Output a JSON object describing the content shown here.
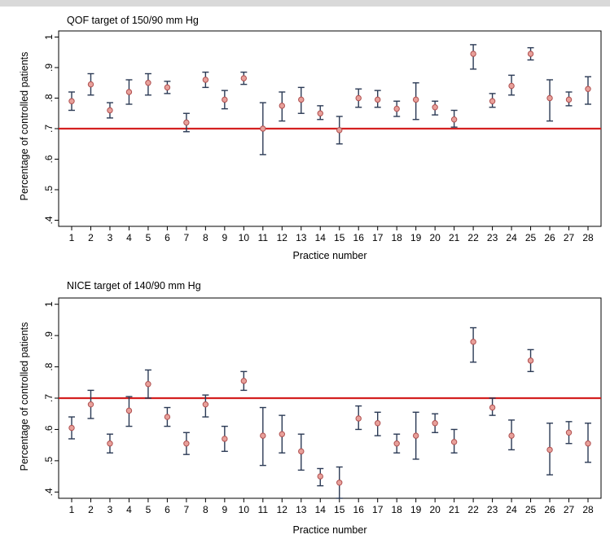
{
  "chart_data": [
    {
      "type": "scatter",
      "title": "QOF target of 150/90 mm Hg",
      "xlabel": "Practice number",
      "ylabel": "Percentage of controlled patients",
      "ylim": [
        0.4,
        1.0
      ],
      "yticks": [
        ".4",
        ".5",
        ".6",
        ".7",
        ".8",
        ".9",
        "1"
      ],
      "x": [
        1,
        2,
        3,
        4,
        5,
        6,
        7,
        8,
        9,
        10,
        11,
        12,
        13,
        14,
        15,
        16,
        17,
        18,
        19,
        20,
        21,
        22,
        23,
        24,
        25,
        26,
        27,
        28
      ],
      "values": [
        0.79,
        0.845,
        0.76,
        0.82,
        0.85,
        0.835,
        0.72,
        0.86,
        0.795,
        0.865,
        0.7,
        0.775,
        0.795,
        0.75,
        0.695,
        0.8,
        0.795,
        0.765,
        0.795,
        0.77,
        0.73,
        0.945,
        0.79,
        0.84,
        0.945,
        0.8,
        0.795,
        0.83
      ],
      "lower": [
        0.76,
        0.81,
        0.735,
        0.78,
        0.81,
        0.815,
        0.69,
        0.835,
        0.765,
        0.845,
        0.615,
        0.725,
        0.75,
        0.73,
        0.65,
        0.77,
        0.77,
        0.74,
        0.73,
        0.745,
        0.705,
        0.895,
        0.77,
        0.81,
        0.925,
        0.725,
        0.775,
        0.78
      ],
      "upper": [
        0.82,
        0.88,
        0.785,
        0.86,
        0.88,
        0.855,
        0.75,
        0.885,
        0.825,
        0.885,
        0.785,
        0.82,
        0.835,
        0.775,
        0.74,
        0.83,
        0.825,
        0.79,
        0.85,
        0.79,
        0.76,
        0.975,
        0.815,
        0.875,
        0.965,
        0.86,
        0.82,
        0.87
      ],
      "reference_line": 0.7,
      "colors": {
        "target": "#d42020",
        "marker": "#e8a09a",
        "errbar": "#2b3a55"
      }
    },
    {
      "type": "scatter",
      "title": "NICE target of 140/90 mm Hg",
      "xlabel": "Practice number",
      "ylabel": "Percentage of controlled patients",
      "ylim": [
        0.4,
        1.0
      ],
      "yticks": [
        ".4",
        ".5",
        ".6",
        ".7",
        ".8",
        ".9",
        "1"
      ],
      "x": [
        1,
        2,
        3,
        4,
        5,
        6,
        7,
        8,
        9,
        10,
        11,
        12,
        13,
        14,
        15,
        16,
        17,
        18,
        19,
        20,
        21,
        22,
        23,
        24,
        25,
        26,
        27,
        28
      ],
      "values": [
        0.605,
        0.68,
        0.555,
        0.66,
        0.745,
        0.64,
        0.555,
        0.68,
        0.57,
        0.755,
        0.58,
        0.585,
        0.53,
        0.45,
        0.43,
        0.635,
        0.62,
        0.555,
        0.58,
        0.62,
        0.56,
        0.88,
        0.67,
        0.58,
        0.82,
        0.535,
        0.59,
        0.555
      ],
      "lower": [
        0.57,
        0.635,
        0.525,
        0.61,
        0.7,
        0.61,
        0.52,
        0.64,
        0.53,
        0.725,
        0.485,
        0.525,
        0.47,
        0.42,
        0.38,
        0.6,
        0.58,
        0.525,
        0.505,
        0.59,
        0.525,
        0.815,
        0.645,
        0.535,
        0.785,
        0.455,
        0.555,
        0.495
      ],
      "upper": [
        0.64,
        0.725,
        0.585,
        0.705,
        0.79,
        0.67,
        0.59,
        0.71,
        0.61,
        0.785,
        0.67,
        0.645,
        0.585,
        0.475,
        0.48,
        0.675,
        0.655,
        0.585,
        0.655,
        0.65,
        0.6,
        0.925,
        0.7,
        0.63,
        0.855,
        0.62,
        0.625,
        0.62
      ],
      "reference_line": 0.7,
      "colors": {
        "target": "#d42020",
        "marker": "#e8a09a",
        "errbar": "#2b3a55"
      }
    }
  ]
}
